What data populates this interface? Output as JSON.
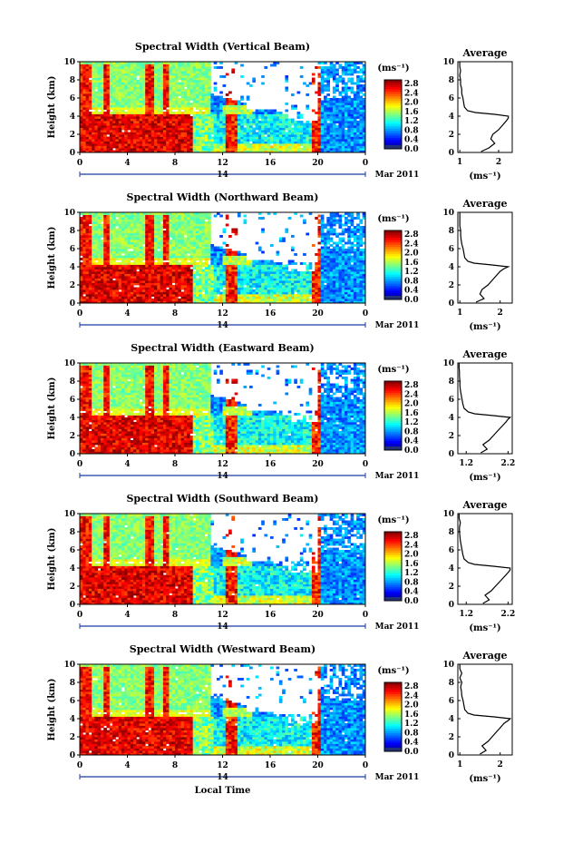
{
  "chart_data": [
    {
      "type": "heatmap",
      "title": "Spectral Width (Vertical Beam)",
      "ylabel": "Height (km)",
      "ylim": [
        0,
        10
      ],
      "yticks": [
        "0",
        "2",
        "4",
        "6",
        "8",
        "10"
      ],
      "xlim": [
        0,
        24
      ],
      "xticks": [
        "0",
        "4",
        "8",
        "12",
        "16",
        "20",
        "0"
      ],
      "date_day": "14",
      "date_label": "Mar 2011",
      "colorbar": {
        "label": "(ms⁻¹)",
        "min": 0,
        "max": 3.0,
        "ticks": [
          "2.8",
          "2.4",
          "2.0",
          "1.6",
          "1.2",
          "0.8",
          "0.4",
          "0.0"
        ]
      },
      "profile": {
        "title": "Average",
        "xlabel": "(ms⁻¹)",
        "xlim": [
          0.95,
          2.35
        ],
        "xticks": [
          {
            "v": 1,
            "t": "1"
          },
          {
            "v": 2,
            "t": "2"
          }
        ],
        "yticks": [
          "0",
          "2",
          "4",
          "6",
          "8",
          "10"
        ],
        "heights": [
          0.1,
          0.5,
          1.0,
          1.5,
          2.0,
          2.5,
          3.0,
          3.5,
          3.8,
          4.0,
          4.2,
          4.4,
          4.6,
          5.0,
          5.5,
          6.0,
          6.5,
          7.0,
          7.5,
          8.0,
          8.5,
          9.0,
          9.5,
          10.0
        ],
        "values": [
          1.55,
          1.75,
          1.9,
          1.8,
          1.85,
          2.0,
          2.1,
          2.2,
          2.25,
          2.25,
          1.9,
          1.4,
          1.2,
          1.12,
          1.1,
          1.08,
          1.05,
          1.05,
          1.02,
          1.02,
          1.0,
          1.02,
          1.0,
          1.0
        ]
      }
    },
    {
      "type": "heatmap",
      "title": "Spectral Width (Northward Beam)",
      "ylabel": "Height (km)",
      "ylim": [
        0,
        10
      ],
      "yticks": [
        "0",
        "2",
        "4",
        "6",
        "8",
        "10"
      ],
      "xlim": [
        0,
        24
      ],
      "xticks": [
        "0",
        "4",
        "8",
        "12",
        "16",
        "20",
        "0"
      ],
      "date_day": "14",
      "date_label": "Mar 2011",
      "colorbar": {
        "label": "(ms⁻¹)",
        "min": 0,
        "max": 3.0,
        "ticks": [
          "2.8",
          "2.4",
          "2.0",
          "1.6",
          "1.2",
          "0.8",
          "0.4",
          "0.0"
        ]
      },
      "profile": {
        "title": "Average",
        "xlabel": "(ms⁻¹)",
        "xlim": [
          0.95,
          2.3
        ],
        "xticks": [
          {
            "v": 1,
            "t": "1"
          },
          {
            "v": 2,
            "t": "2"
          }
        ],
        "yticks": [
          "0",
          "2",
          "4",
          "6",
          "8",
          "10"
        ],
        "heights": [
          0.1,
          0.5,
          1.0,
          1.5,
          2.0,
          2.5,
          3.0,
          3.5,
          3.8,
          4.0,
          4.2,
          4.4,
          4.6,
          5.0,
          5.5,
          6.0,
          6.5,
          7.0,
          7.5,
          8.0,
          8.5,
          9.0,
          9.5,
          10.0
        ],
        "values": [
          1.4,
          1.6,
          1.5,
          1.55,
          1.7,
          1.8,
          1.9,
          2.0,
          2.1,
          2.2,
          1.8,
          1.35,
          1.2,
          1.12,
          1.1,
          1.08,
          1.05,
          1.03,
          1.02,
          1.02,
          1.0,
          1.0,
          1.0,
          1.0
        ]
      }
    },
    {
      "type": "heatmap",
      "title": "Spectral Width (Eastward Beam)",
      "ylabel": "Height (km)",
      "ylim": [
        0,
        10
      ],
      "yticks": [
        "0",
        "2",
        "4",
        "6",
        "8",
        "10"
      ],
      "xlim": [
        0,
        24
      ],
      "xticks": [
        "0",
        "4",
        "8",
        "12",
        "16",
        "20",
        "0"
      ],
      "date_day": "14",
      "date_label": "Mar 2011",
      "colorbar": {
        "label": "(ms⁻¹)",
        "min": 0,
        "max": 3.0,
        "ticks": [
          "2.8",
          "2.4",
          "2.0",
          "1.6",
          "1.2",
          "0.8",
          "0.4",
          "0.0"
        ]
      },
      "profile": {
        "title": "Average",
        "xlabel": "(ms⁻¹)",
        "xlim": [
          1.0,
          2.3
        ],
        "xticks": [
          {
            "v": 1.2,
            "t": "1.2"
          },
          {
            "v": 2.2,
            "t": "2.2"
          }
        ],
        "yticks": [
          "0",
          "2",
          "4",
          "6",
          "8",
          "10"
        ],
        "heights": [
          0.1,
          0.5,
          1.0,
          1.5,
          2.0,
          2.5,
          3.0,
          3.5,
          3.8,
          4.0,
          4.2,
          4.4,
          4.6,
          5.0,
          5.5,
          6.0,
          6.5,
          7.0,
          7.5,
          8.0,
          8.5,
          9.0,
          9.5,
          10.0
        ],
        "values": [
          1.55,
          1.7,
          1.6,
          1.75,
          1.85,
          1.95,
          2.05,
          2.15,
          2.2,
          2.25,
          1.85,
          1.4,
          1.25,
          1.15,
          1.12,
          1.1,
          1.08,
          1.06,
          1.05,
          1.05,
          1.04,
          1.04,
          1.03,
          1.03
        ]
      }
    },
    {
      "type": "heatmap",
      "title": "Spectral Width (Southward Beam)",
      "ylabel": "Height (km)",
      "ylim": [
        0,
        10
      ],
      "yticks": [
        "0",
        "2",
        "4",
        "6",
        "8",
        "10"
      ],
      "xlim": [
        0,
        24
      ],
      "xticks": [
        "0",
        "4",
        "8",
        "12",
        "16",
        "20",
        "0"
      ],
      "date_day": "14",
      "date_label": "Mar 2011",
      "colorbar": {
        "label": "(ms⁻¹)",
        "min": 0,
        "max": 3.0,
        "ticks": [
          "2.8",
          "2.4",
          "2.0",
          "1.6",
          "1.2",
          "0.8",
          "0.4",
          "0.0"
        ]
      },
      "profile": {
        "title": "Average",
        "xlabel": "(ms⁻¹)",
        "xlim": [
          1.0,
          2.3
        ],
        "xticks": [
          {
            "v": 1.2,
            "t": "1.2"
          },
          {
            "v": 2.2,
            "t": "2.2"
          }
        ],
        "yticks": [
          "0",
          "2",
          "4",
          "6",
          "8",
          "10"
        ],
        "heights": [
          0.1,
          0.5,
          1.0,
          1.5,
          2.0,
          2.5,
          3.0,
          3.5,
          3.8,
          4.0,
          4.2,
          4.4,
          4.6,
          5.0,
          5.5,
          6.0,
          6.5,
          7.0,
          7.5,
          8.0,
          8.5,
          9.0,
          9.5,
          10.0
        ],
        "values": [
          1.6,
          1.75,
          1.65,
          1.8,
          1.9,
          2.0,
          2.1,
          2.2,
          2.25,
          2.25,
          1.85,
          1.4,
          1.25,
          1.15,
          1.12,
          1.1,
          1.08,
          1.06,
          1.05,
          1.04,
          1.04,
          1.06,
          1.03,
          1.03
        ]
      }
    },
    {
      "type": "heatmap",
      "title": "Spectral Width (Westward Beam)",
      "ylabel": "Height (km)",
      "xlabel": "Local Time",
      "ylim": [
        0,
        10
      ],
      "yticks": [
        "0",
        "2",
        "4",
        "6",
        "8",
        "10"
      ],
      "xlim": [
        0,
        24
      ],
      "xticks": [
        "0",
        "4",
        "8",
        "12",
        "16",
        "20",
        "0"
      ],
      "date_day": "14",
      "date_label": "Mar 2011",
      "colorbar": {
        "label": "(ms⁻¹)",
        "min": 0,
        "max": 3.0,
        "ticks": [
          "2.8",
          "2.4",
          "2.0",
          "1.6",
          "1.2",
          "0.8",
          "0.4",
          "0.0"
        ]
      },
      "profile": {
        "title": "Average",
        "xlabel": "(ms⁻¹)",
        "xlim": [
          0.95,
          2.3
        ],
        "xticks": [
          {
            "v": 1,
            "t": "1"
          },
          {
            "v": 2,
            "t": "2"
          }
        ],
        "yticks": [
          "0",
          "2",
          "4",
          "6",
          "8",
          "10"
        ],
        "heights": [
          0.1,
          0.5,
          1.0,
          1.5,
          2.0,
          2.5,
          3.0,
          3.5,
          3.8,
          4.0,
          4.2,
          4.4,
          4.6,
          5.0,
          5.5,
          6.0,
          6.5,
          7.0,
          7.5,
          8.0,
          8.5,
          9.0,
          9.5,
          10.0
        ],
        "values": [
          1.5,
          1.65,
          1.55,
          1.7,
          1.8,
          1.9,
          2.0,
          2.1,
          2.2,
          2.25,
          1.85,
          1.35,
          1.2,
          1.12,
          1.1,
          1.08,
          1.05,
          1.04,
          1.02,
          1.05,
          1.0,
          1.05,
          1.0,
          1.0
        ]
      }
    }
  ]
}
